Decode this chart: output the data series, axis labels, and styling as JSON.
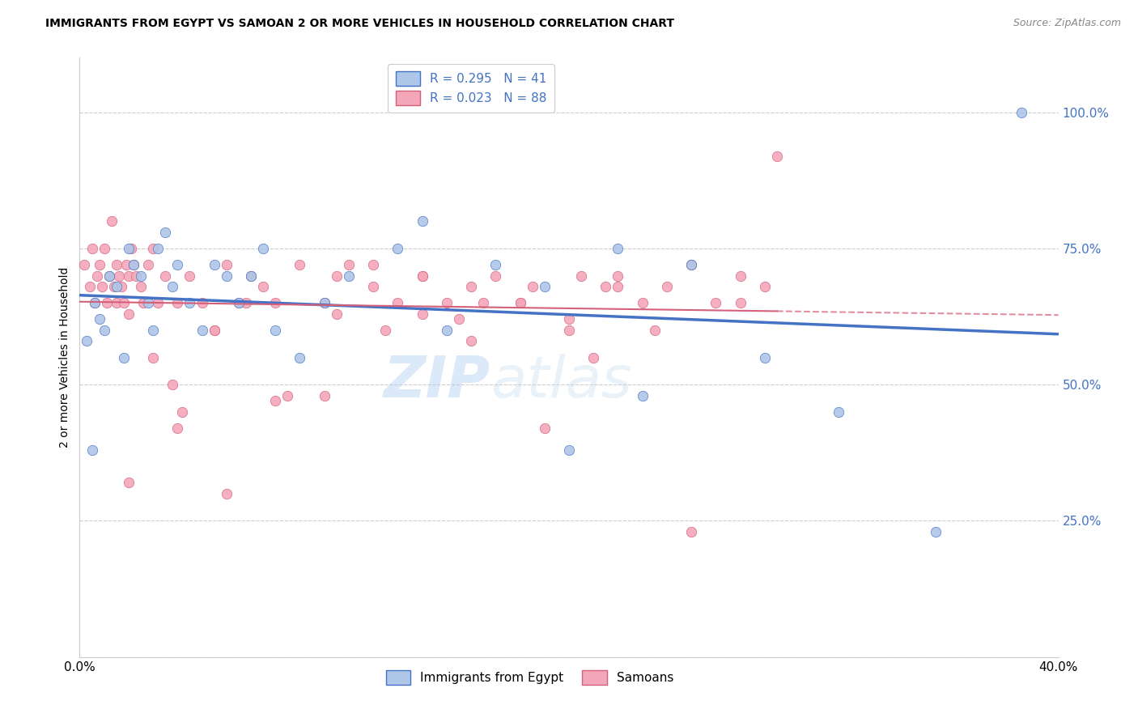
{
  "title": "IMMIGRANTS FROM EGYPT VS SAMOAN 2 OR MORE VEHICLES IN HOUSEHOLD CORRELATION CHART",
  "source": "Source: ZipAtlas.com",
  "ylabel": "2 or more Vehicles in Household",
  "egypt_color": "#aec6e8",
  "egypt_line_color": "#4472c4",
  "samoan_color": "#f4a7b9",
  "samoan_line_color": "#d4607a",
  "watermark_text": "ZIPatlas",
  "egypt_R": 0.295,
  "egypt_N": 41,
  "samoan_R": 0.023,
  "samoan_N": 88,
  "egypt_x": [
    0.3,
    0.5,
    0.6,
    0.8,
    1.0,
    1.2,
    1.5,
    1.8,
    2.0,
    2.2,
    2.5,
    2.8,
    3.0,
    3.2,
    3.5,
    3.8,
    4.0,
    4.5,
    5.0,
    5.5,
    6.0,
    6.5,
    7.0,
    7.5,
    8.0,
    9.0,
    10.0,
    11.0,
    13.0,
    14.0,
    15.0,
    17.0,
    19.0,
    20.0,
    22.0,
    23.0,
    25.0,
    28.0,
    31.0,
    35.0,
    38.5
  ],
  "egypt_y": [
    58,
    38,
    65,
    62,
    60,
    70,
    68,
    55,
    75,
    72,
    70,
    65,
    60,
    75,
    78,
    68,
    72,
    65,
    60,
    72,
    70,
    65,
    70,
    75,
    60,
    55,
    65,
    70,
    75,
    80,
    60,
    72,
    68,
    38,
    75,
    48,
    72,
    55,
    45,
    23,
    100
  ],
  "samoan_x": [
    0.2,
    0.4,
    0.5,
    0.6,
    0.7,
    0.8,
    0.9,
    1.0,
    1.1,
    1.2,
    1.3,
    1.4,
    1.5,
    1.5,
    1.6,
    1.7,
    1.8,
    1.9,
    2.0,
    2.0,
    2.1,
    2.2,
    2.3,
    2.5,
    2.6,
    2.8,
    3.0,
    3.2,
    3.5,
    3.8,
    4.0,
    4.5,
    5.0,
    5.5,
    6.0,
    6.5,
    7.0,
    7.5,
    8.0,
    9.0,
    10.0,
    10.5,
    11.0,
    12.0,
    13.0,
    14.0,
    15.0,
    15.5,
    16.0,
    17.0,
    18.0,
    19.0,
    20.0,
    21.0,
    21.5,
    22.0,
    23.0,
    23.5,
    24.0,
    25.0,
    26.0,
    27.0,
    28.0,
    3.0,
    4.2,
    5.5,
    6.8,
    8.5,
    10.5,
    12.5,
    14.0,
    16.5,
    18.5,
    20.5,
    2.0,
    4.0,
    6.0,
    8.0,
    10.0,
    12.0,
    14.0,
    16.0,
    18.0,
    20.0,
    22.0,
    25.0,
    27.0,
    28.5
  ],
  "samoan_y": [
    72,
    68,
    75,
    65,
    70,
    72,
    68,
    75,
    65,
    70,
    80,
    68,
    72,
    65,
    70,
    68,
    65,
    72,
    70,
    63,
    75,
    72,
    70,
    68,
    65,
    72,
    75,
    65,
    70,
    50,
    65,
    70,
    65,
    60,
    72,
    65,
    70,
    68,
    65,
    72,
    65,
    70,
    72,
    68,
    65,
    70,
    65,
    62,
    68,
    70,
    65,
    42,
    62,
    55,
    68,
    70,
    65,
    60,
    68,
    72,
    65,
    70,
    68,
    55,
    45,
    60,
    65,
    48,
    63,
    60,
    70,
    65,
    68,
    70,
    32,
    42,
    30,
    47,
    48,
    72,
    63,
    58,
    65,
    60,
    68,
    23,
    65,
    92
  ]
}
